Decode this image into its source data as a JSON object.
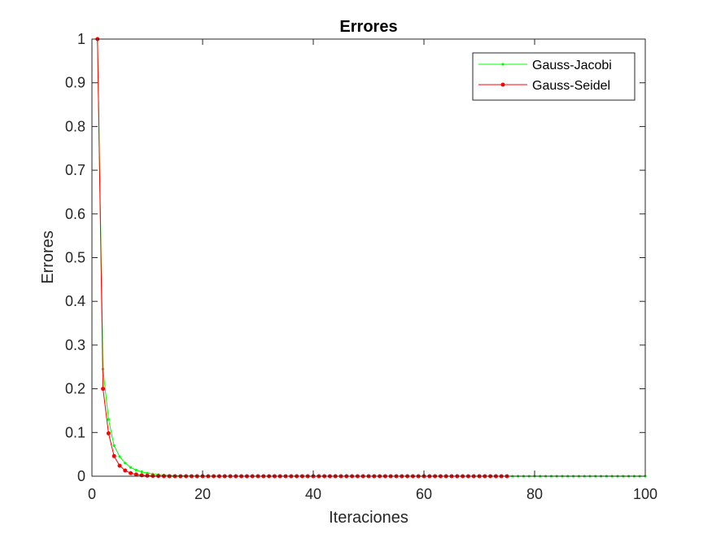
{
  "chart_data": {
    "type": "line",
    "title": "Errores",
    "xlabel": "Iteraciones",
    "ylabel": "Errores",
    "xlim": [
      0,
      100
    ],
    "ylim": [
      0,
      1
    ],
    "xticks": [
      0,
      20,
      40,
      60,
      80,
      100
    ],
    "yticks": [
      0,
      0.1,
      0.2,
      0.3,
      0.4,
      0.5,
      0.6,
      0.7,
      0.8,
      0.9,
      1
    ],
    "grid": false,
    "legend_position": "top-right",
    "series": [
      {
        "name": "Gauss-Jacobi",
        "color": "#00ff00",
        "marker": "dot",
        "x": [
          1,
          2,
          3,
          4,
          5,
          6,
          7,
          8,
          9,
          10,
          11,
          12,
          13,
          14,
          15,
          16,
          17,
          18,
          19,
          20,
          21,
          22,
          23,
          24,
          25,
          26,
          27,
          28,
          29,
          30,
          31,
          32,
          33,
          34,
          35,
          36,
          37,
          38,
          39,
          40,
          41,
          42,
          43,
          44,
          45,
          46,
          47,
          48,
          49,
          50,
          51,
          52,
          53,
          54,
          55,
          56,
          57,
          58,
          59,
          60,
          61,
          62,
          63,
          64,
          65,
          66,
          67,
          68,
          69,
          70,
          71,
          72,
          73,
          74,
          75,
          76,
          77,
          78,
          79,
          80,
          81,
          82,
          83,
          84,
          85,
          86,
          87,
          88,
          89,
          90,
          91,
          92,
          93,
          94,
          95,
          96,
          97,
          98,
          99,
          100
        ],
        "y": [
          1,
          0.245,
          0.13,
          0.07,
          0.045,
          0.03,
          0.02,
          0.014,
          0.01,
          0.007,
          0.005,
          0.0035,
          0.0025,
          0.0018,
          0.0013,
          0.0009,
          0.0006,
          0.0004,
          0.0003,
          0.0002,
          0.00015,
          0.0001,
          7e-05,
          5e-05,
          3e-05,
          2e-05,
          1e-05,
          0,
          0,
          0,
          0,
          0,
          0,
          0,
          0,
          0,
          0,
          0,
          0,
          0,
          0,
          0,
          0,
          0,
          0,
          0,
          0,
          0,
          0,
          0,
          0,
          0,
          0,
          0,
          0,
          0,
          0,
          0,
          0,
          0,
          0,
          0,
          0,
          0,
          0,
          0,
          0,
          0,
          0,
          0,
          0,
          0,
          0,
          0,
          0,
          0,
          0,
          0,
          0,
          0,
          0,
          0,
          0,
          0,
          0,
          0,
          0,
          0,
          0,
          0,
          0,
          0,
          0,
          0,
          0,
          0,
          0,
          0,
          0,
          0
        ]
      },
      {
        "name": "Gauss-Seidel",
        "color": "#ff0000",
        "marker": "dot",
        "x": [
          1,
          2,
          3,
          4,
          5,
          6,
          7,
          8,
          9,
          10,
          11,
          12,
          13,
          14,
          15,
          16,
          17,
          18,
          19,
          20,
          21,
          22,
          23,
          24,
          25,
          26,
          27,
          28,
          29,
          30,
          31,
          32,
          33,
          34,
          35,
          36,
          37,
          38,
          39,
          40,
          41,
          42,
          43,
          44,
          45,
          46,
          47,
          48,
          49,
          50,
          51,
          52,
          53,
          54,
          55,
          56,
          57,
          58,
          59,
          60,
          61,
          62,
          63,
          64,
          65,
          66,
          67,
          68,
          69,
          70,
          71,
          72,
          73,
          74,
          75
        ],
        "y": [
          1,
          0.2,
          0.098,
          0.046,
          0.024,
          0.013,
          0.007,
          0.004,
          0.0022,
          0.0012,
          0.0007,
          0.0004,
          0.0002,
          0.0001,
          6e-05,
          3e-05,
          2e-05,
          1e-05,
          0,
          0,
          0,
          0,
          0,
          0,
          0,
          0,
          0,
          0,
          0,
          0,
          0,
          0,
          0,
          0,
          0,
          0,
          0,
          0,
          0,
          0,
          0,
          0,
          0,
          0,
          0,
          0,
          0,
          0,
          0,
          0,
          0,
          0,
          0,
          0,
          0,
          0,
          0,
          0,
          0,
          0,
          0,
          0,
          0,
          0,
          0,
          0,
          0,
          0,
          0,
          0,
          0,
          0,
          0,
          0,
          0
        ]
      }
    ]
  }
}
